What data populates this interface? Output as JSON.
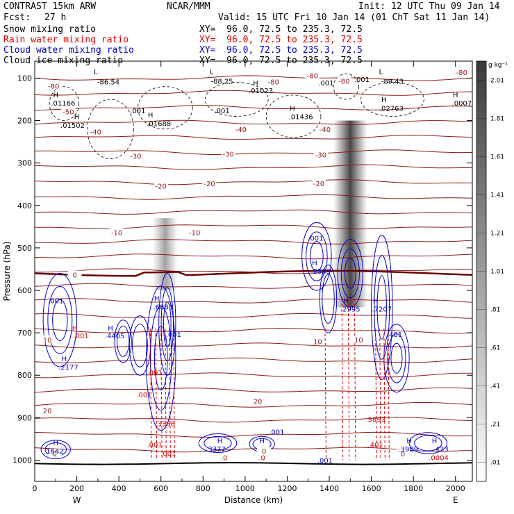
{
  "header": {
    "model": "CONTRAST 15km ARW",
    "org": "NCAR/MMM",
    "init": "Init: 12 UTC Thu 09 Jan 14",
    "fcst_label": "Fcst:",
    "fcst_value": "27 h",
    "valid": "Valid: 15 UTC Fri 10 Jan 14 (01 ChT Sat 11 Jan 14)"
  },
  "fields": [
    {
      "name": "Snow mixing ratio",
      "xy": "XY=  96.0, 72.5 to 235.3, 72.5",
      "color": "#000000"
    },
    {
      "name": "Rain water mixing ratio",
      "xy": "XY=  96.0, 72.5 to 235.3, 72.5",
      "color": "#d40000"
    },
    {
      "name": "Cloud water mixing ratio",
      "xy": "XY=  96.0, 72.5 to 235.3, 72.5",
      "color": "#0000cc"
    },
    {
      "name": "Cloud ice mixing ratio",
      "xy": "XY=  96.0, 72.5 to 235.3, 72.5",
      "color": "#000000"
    }
  ],
  "colors": {
    "temperature": "#8b1a1a",
    "freezing_level": "#6b0000",
    "rain": "#d40000",
    "cloud_water": "#0000cc",
    "ice": "#000000",
    "snow_shade": "#303030"
  },
  "chart_data": {
    "type": "cross-section",
    "xlabel": "Distance (km)",
    "ylabel": "Pressure (hPa)",
    "xlim": [
      0,
      2080
    ],
    "ylim": [
      1050,
      60
    ],
    "x_ticks": [
      0,
      200,
      400,
      600,
      800,
      1000,
      1200,
      1400,
      1600,
      1800,
      2000
    ],
    "y_ticks": [
      100,
      200,
      300,
      400,
      500,
      600,
      700,
      800,
      900,
      1000
    ],
    "west_label": "W",
    "east_label": "E",
    "colorbar": {
      "unit": "g kg⁻¹",
      "levels": [
        ".01",
        ".21",
        ".41",
        ".61",
        ".81",
        "1.01",
        "1.21",
        "1.41",
        "1.61",
        "1.81",
        "2.01"
      ]
    },
    "temperature_labels": [
      {
        "text": "-80",
        "x": 90,
        "p": 120
      },
      {
        "text": "-80",
        "x": 1320,
        "p": 95
      },
      {
        "text": "-80",
        "x": 1135,
        "p": 110
      },
      {
        "text": "-80",
        "x": 1470,
        "p": 108
      },
      {
        "text": "-80",
        "x": 2030,
        "p": 88
      },
      {
        "text": "-50",
        "x": 160,
        "p": 180
      },
      {
        "text": "-40",
        "x": 290,
        "p": 228
      },
      {
        "text": "-40",
        "x": 980,
        "p": 222
      },
      {
        "text": "-40",
        "x": 1380,
        "p": 222
      },
      {
        "text": "-30",
        "x": 480,
        "p": 285
      },
      {
        "text": "-30",
        "x": 920,
        "p": 280
      },
      {
        "text": "-30",
        "x": 1360,
        "p": 282
      },
      {
        "text": "-20",
        "x": 600,
        "p": 355
      },
      {
        "text": "-20",
        "x": 830,
        "p": 350
      },
      {
        "text": "-20",
        "x": 1350,
        "p": 350
      },
      {
        "text": "-10",
        "x": 390,
        "p": 465
      },
      {
        "text": "-10",
        "x": 760,
        "p": 465
      },
      {
        "text": "0",
        "x": 190,
        "p": 565
      },
      {
        "text": "10",
        "x": 60,
        "p": 718
      },
      {
        "text": "10",
        "x": 1345,
        "p": 722
      },
      {
        "text": "10",
        "x": 1540,
        "p": 718
      },
      {
        "text": "20",
        "x": 60,
        "p": 885
      },
      {
        "text": "20",
        "x": 1060,
        "p": 863
      },
      {
        "text": "0",
        "x": 95,
        "p": 985
      },
      {
        "text": "0",
        "x": 1090,
        "p": 980
      },
      {
        "text": "0",
        "x": 1750,
        "p": 986
      }
    ],
    "extrema_labels": [
      {
        "text": "L",
        "x": 290,
        "p": 85,
        "color": "#000000"
      },
      {
        "text": "-86.54",
        "x": 350,
        "p": 110,
        "color": "#000000"
      },
      {
        "text": "L",
        "x": 840,
        "p": 85,
        "color": "#000000"
      },
      {
        "text": "-88.25",
        "x": 890,
        "p": 108,
        "color": "#000000"
      },
      {
        "text": "L",
        "x": 1645,
        "p": 85,
        "color": "#000000"
      },
      {
        "text": "-89.43",
        "x": 1700,
        "p": 108,
        "color": "#000000"
      },
      {
        "text": "H",
        "x": 100,
        "p": 140,
        "color": "#000000"
      },
      {
        "text": ".01166",
        "x": 135,
        "p": 160,
        "color": "#000000"
      },
      {
        "text": "H",
        "x": 1050,
        "p": 112,
        "color": "#000000"
      },
      {
        "text": ".01023",
        "x": 1075,
        "p": 130,
        "color": "#000000"
      },
      {
        "text": "H",
        "x": 1660,
        "p": 152,
        "color": "#000000"
      },
      {
        "text": ".02763",
        "x": 1695,
        "p": 172,
        "color": "#000000"
      },
      {
        "text": "H",
        "x": 2000,
        "p": 140,
        "color": "#000000"
      },
      {
        "text": ".0007",
        "x": 2030,
        "p": 160,
        "color": "#000000"
      },
      {
        "text": "H",
        "x": 200,
        "p": 192,
        "color": "#000000"
      },
      {
        "text": ".01502",
        "x": 180,
        "p": 212,
        "color": "#000000"
      },
      {
        "text": "H",
        "x": 550,
        "p": 188,
        "color": "#000000"
      },
      {
        "text": ".01688",
        "x": 590,
        "p": 208,
        "color": "#000000"
      },
      {
        "text": "H",
        "x": 1225,
        "p": 172,
        "color": "#000000"
      },
      {
        "text": ".01436",
        "x": 1265,
        "p": 192,
        "color": "#000000"
      },
      {
        "text": ".001",
        "x": 490,
        "p": 178,
        "color": "#000000"
      },
      {
        "text": ".001",
        "x": 890,
        "p": 178,
        "color": "#000000"
      },
      {
        "text": ".001",
        "x": 1385,
        "p": 112,
        "color": "#000000"
      },
      {
        "text": ".001",
        "x": 1555,
        "p": 104,
        "color": "#000000"
      },
      {
        "text": ".001",
        "x": 1335,
        "p": 478,
        "color": "#0000cc"
      },
      {
        "text": "H",
        "x": 1330,
        "p": 536,
        "color": "#0000cc"
      },
      {
        "text": ".2599",
        "x": 1360,
        "p": 556,
        "color": "#0000cc"
      },
      {
        "text": ".001",
        "x": 100,
        "p": 625,
        "color": "#0000cc"
      },
      {
        "text": "H",
        "x": 580,
        "p": 620,
        "color": "#0000cc"
      },
      {
        "text": ".6883",
        "x": 610,
        "p": 640,
        "color": "#0000cc"
      },
      {
        "text": "H",
        "x": 1480,
        "p": 625,
        "color": "#0000cc"
      },
      {
        "text": ".2995",
        "x": 1500,
        "p": 645,
        "color": "#0000cc"
      },
      {
        "text": "H",
        "x": 1620,
        "p": 625,
        "color": "#0000cc"
      },
      {
        "text": ".7207",
        "x": 1650,
        "p": 645,
        "color": "#0000cc"
      },
      {
        "text": "H",
        "x": 190,
        "p": 690,
        "color": "#d40000"
      },
      {
        "text": ".001",
        "x": 220,
        "p": 708,
        "color": "#d40000"
      },
      {
        "text": "H",
        "x": 360,
        "p": 690,
        "color": "#0000cc"
      },
      {
        "text": ".4405",
        "x": 380,
        "p": 708,
        "color": "#0000cc"
      },
      {
        "text": "H",
        "x": 140,
        "p": 762,
        "color": "#0000cc"
      },
      {
        "text": ".2177",
        "x": 160,
        "p": 782,
        "color": "#0000cc"
      },
      {
        "text": ".001",
        "x": 660,
        "p": 705,
        "color": "#0000cc"
      },
      {
        "text": ".001",
        "x": 570,
        "p": 795,
        "color": "#d40000"
      },
      {
        "text": ".001",
        "x": 520,
        "p": 847,
        "color": "#d40000"
      },
      {
        "text": ".401",
        "x": 1710,
        "p": 705,
        "color": "#0000cc"
      },
      {
        "text": ".3366",
        "x": 620,
        "p": 915,
        "color": "#d40000"
      },
      {
        "text": ".001",
        "x": 570,
        "p": 965,
        "color": "#d40000"
      },
      {
        "text": ".001",
        "x": 635,
        "p": 985,
        "color": "#d40000"
      },
      {
        "text": ".5893",
        "x": 1620,
        "p": 905,
        "color": "#d40000"
      },
      {
        "text": ".401",
        "x": 1620,
        "p": 965,
        "color": "#d40000"
      },
      {
        "text": "H",
        "x": 100,
        "p": 960,
        "color": "#0000cc"
      },
      {
        "text": ".1642",
        "x": 90,
        "p": 980,
        "color": "#0000cc"
      },
      {
        "text": "H",
        "x": 880,
        "p": 955,
        "color": "#0000cc"
      },
      {
        "text": ".3377",
        "x": 860,
        "p": 975,
        "color": "#0000cc"
      },
      {
        "text": ".0",
        "x": 900,
        "p": 995,
        "color": "#d40000"
      },
      {
        "text": "H",
        "x": 1080,
        "p": 955,
        "color": "#0000cc"
      },
      {
        "text": ".0",
        "x": 1080,
        "p": 995,
        "color": "#d40000"
      },
      {
        "text": ".001",
        "x": 1150,
        "p": 935,
        "color": "#0000cc"
      },
      {
        "text": ".001",
        "x": 1380,
        "p": 1002,
        "color": "#0000cc"
      },
      {
        "text": "H",
        "x": 1780,
        "p": 955,
        "color": "#0000cc"
      },
      {
        "text": ".3989",
        "x": 1775,
        "p": 975,
        "color": "#0000cc"
      },
      {
        "text": "H",
        "x": 1900,
        "p": 955,
        "color": "#0000cc"
      },
      {
        "text": ".423",
        "x": 1930,
        "p": 975,
        "color": "#0000cc"
      },
      {
        "text": ".0004",
        "x": 1920,
        "p": 995,
        "color": "#d40000"
      }
    ]
  }
}
